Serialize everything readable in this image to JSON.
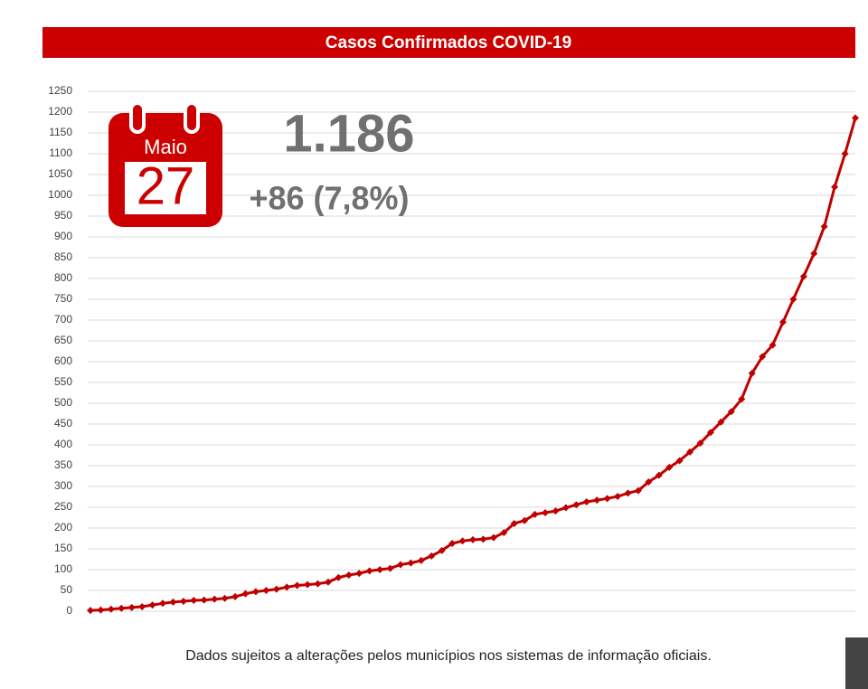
{
  "chart_data": {
    "type": "line",
    "title": "Casos Confirmados COVID-19",
    "calendar_month": "Maio",
    "calendar_day": "27",
    "total": "1.186",
    "change": "+86 (7,8%)",
    "footnote": "Dados sujeitos a alterações pelos municípios nos sistemas de informação oficiais.",
    "categories": [
      null,
      null,
      null,
      null,
      null,
      null,
      null,
      null,
      null,
      null,
      null,
      null,
      null,
      null,
      null,
      null,
      null,
      null,
      null,
      null,
      null,
      null,
      null,
      null,
      null,
      null,
      null,
      null,
      null,
      null,
      null,
      null,
      null,
      null,
      null,
      null,
      null,
      null,
      null,
      null,
      null,
      null,
      null,
      null,
      null,
      null,
      null,
      null,
      null,
      null,
      null,
      null,
      null,
      null,
      null,
      null,
      null,
      null,
      null,
      null,
      null,
      null,
      null,
      null,
      null,
      null,
      null,
      null,
      null,
      null,
      null,
      null,
      null,
      null,
      null
    ],
    "values": [
      2,
      3,
      5,
      7,
      9,
      11,
      15,
      19,
      22,
      24,
      26,
      27,
      29,
      31,
      35,
      42,
      47,
      50,
      53,
      58,
      62,
      64,
      66,
      70,
      81,
      87,
      91,
      97,
      100,
      103,
      112,
      116,
      122,
      133,
      146,
      163,
      169,
      172,
      173,
      177,
      189,
      211,
      218,
      233,
      237,
      241,
      249,
      256,
      263,
      267,
      271,
      276,
      284,
      290,
      311,
      327,
      346,
      362,
      383,
      404,
      430,
      455,
      480,
      510,
      572,
      612,
      640,
      695,
      750,
      805,
      860,
      925,
      1020,
      1100,
      1186
    ],
    "color": "#c00000",
    "ylim": [
      0,
      1250
    ],
    "yticks": [
      0,
      50,
      100,
      150,
      200,
      250,
      300,
      350,
      400,
      450,
      500,
      550,
      600,
      650,
      700,
      750,
      800,
      850,
      900,
      950,
      1000,
      1050,
      1100,
      1150,
      1200,
      1250
    ],
    "grid": true
  }
}
